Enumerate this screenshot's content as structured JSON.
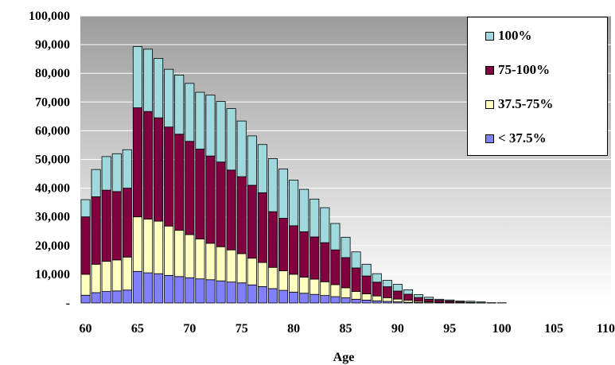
{
  "chart_data": {
    "type": "bar",
    "stacked": true,
    "xlabel": "Age",
    "ylabel": "",
    "ylim": [
      0,
      100000
    ],
    "yticks": [
      "-",
      "10,000",
      "20,000",
      "30,000",
      "40,000",
      "50,000",
      "60,000",
      "70,000",
      "80,000",
      "90,000",
      "100,000"
    ],
    "xticks": [
      "60",
      "65",
      "70",
      "75",
      "80",
      "85",
      "90",
      "95",
      "100",
      "105",
      "110"
    ],
    "legend_position": "top-right",
    "grid": true,
    "background": "gradient-grey",
    "x": [
      60,
      61,
      62,
      63,
      64,
      65,
      66,
      67,
      68,
      69,
      70,
      71,
      72,
      73,
      74,
      75,
      76,
      77,
      78,
      79,
      80,
      81,
      82,
      83,
      84,
      85,
      86,
      87,
      88,
      89,
      90,
      91,
      92,
      93,
      94,
      95,
      96,
      97,
      98,
      99,
      100,
      101,
      102,
      103,
      104,
      105,
      106,
      107,
      108,
      109,
      110
    ],
    "series": [
      {
        "name": "< 37.5%",
        "color": "#8080ff",
        "values": [
          2700,
          3600,
          4000,
          4200,
          4500,
          11000,
          10500,
          10200,
          9600,
          9200,
          8800,
          8400,
          8100,
          7700,
          7300,
          7000,
          6300,
          5700,
          5000,
          4400,
          3800,
          3400,
          3000,
          2600,
          2200,
          1800,
          1300,
          1000,
          750,
          550,
          400,
          250,
          150,
          100,
          60,
          40,
          20,
          10,
          5,
          0,
          0,
          0,
          0,
          0,
          0,
          0,
          0,
          0,
          0,
          0,
          0
        ]
      },
      {
        "name": "37.5-75%",
        "color": "#ffffc0",
        "values": [
          7300,
          9900,
          10500,
          10800,
          11500,
          19000,
          18700,
          18300,
          17200,
          16100,
          15000,
          13900,
          12700,
          11900,
          11200,
          10200,
          9300,
          8400,
          7400,
          6800,
          6200,
          5600,
          5300,
          4800,
          4200,
          3500,
          2700,
          2200,
          1700,
          1300,
          950,
          700,
          450,
          300,
          200,
          110,
          60,
          30,
          10,
          5,
          0,
          0,
          0,
          0,
          0,
          0,
          0,
          0,
          0,
          0,
          0
        ]
      },
      {
        "name": "75-100%",
        "color": "#800040",
        "values": [
          20000,
          23500,
          24800,
          23800,
          24000,
          38000,
          37500,
          36000,
          34500,
          33500,
          32500,
          31300,
          30400,
          29500,
          27800,
          26800,
          25400,
          24300,
          19400,
          18300,
          16900,
          15800,
          14700,
          13600,
          12100,
          10500,
          8200,
          6200,
          4800,
          3800,
          2800,
          2100,
          1300,
          900,
          700,
          560,
          300,
          160,
          60,
          20,
          0,
          0,
          0,
          0,
          0,
          0,
          0,
          0,
          0,
          0,
          0
        ]
      },
      {
        "name": "100%",
        "color": "#9fd9dd",
        "values": [
          6000,
          9500,
          11700,
          13200,
          13400,
          21300,
          21700,
          20700,
          20100,
          20600,
          20200,
          19800,
          21200,
          21100,
          21400,
          19400,
          17200,
          16800,
          18500,
          17200,
          15900,
          14800,
          13200,
          12200,
          9200,
          7100,
          5600,
          4100,
          2950,
          2250,
          2350,
          1550,
          1000,
          700,
          340,
          350,
          320,
          400,
          300,
          75,
          80,
          0,
          0,
          0,
          0,
          0,
          0,
          0,
          0,
          0,
          0
        ]
      }
    ]
  }
}
